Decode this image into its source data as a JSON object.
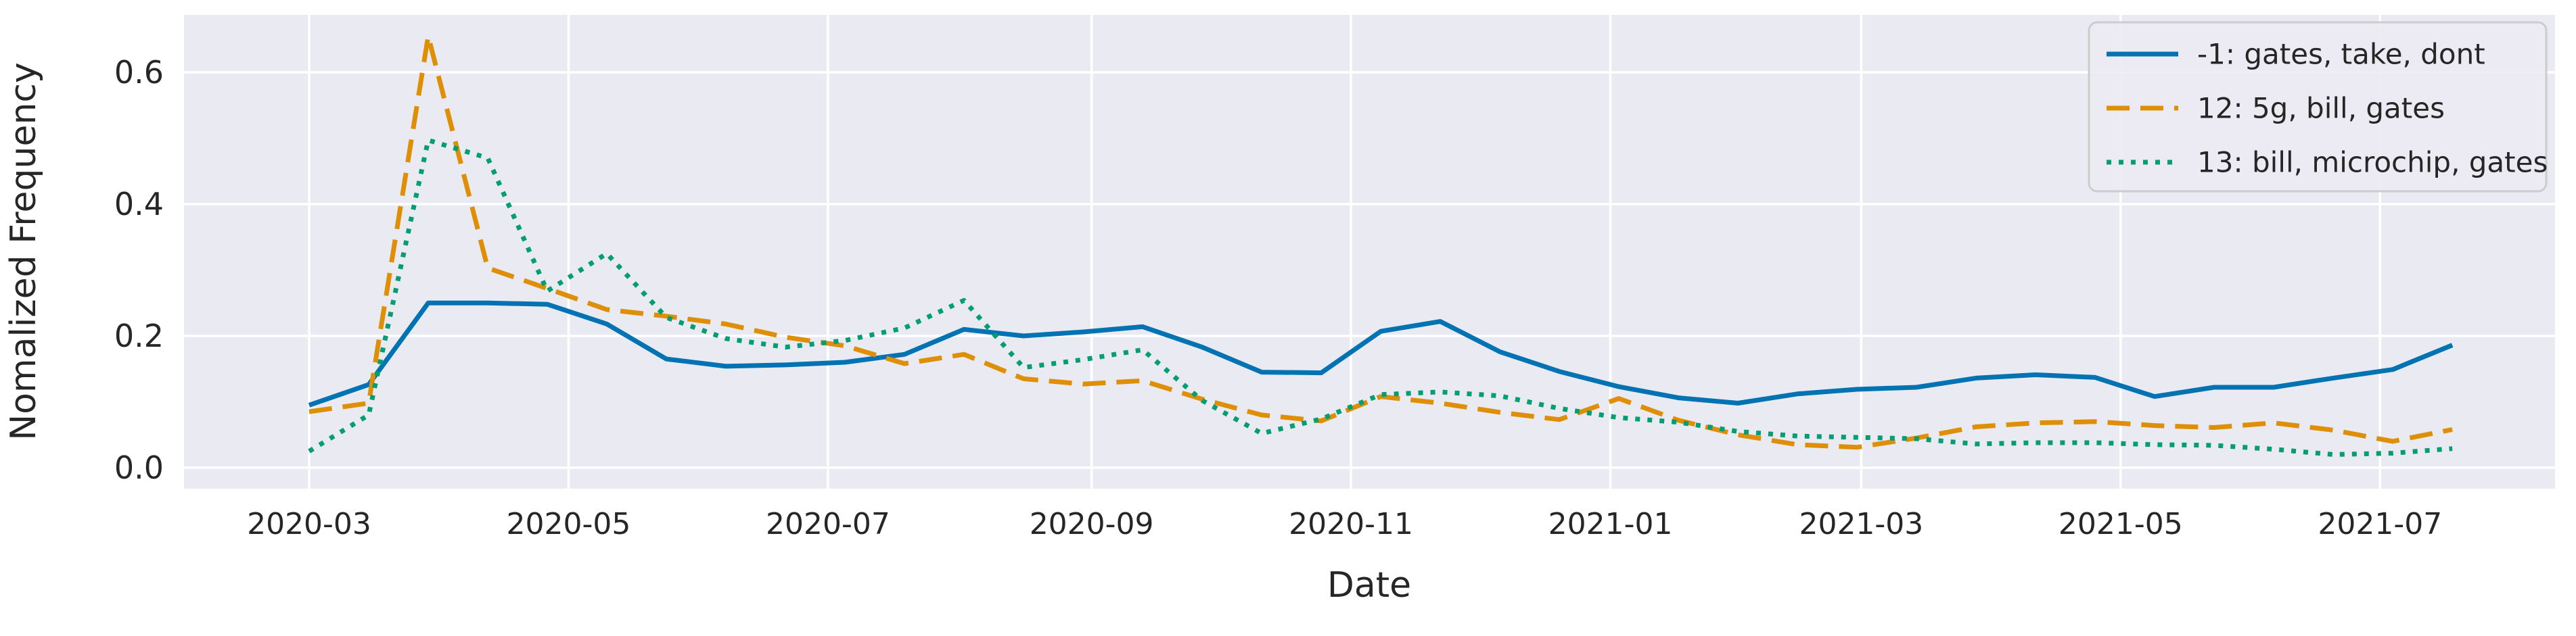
{
  "figure": {
    "background": "#ffffff",
    "plot_background": "#eaeaf2",
    "grid_color": "#ffffff",
    "text_color": "#262626",
    "legend_border_color": "#cccccc",
    "legend_background": "#ecebf4"
  },
  "chart_data": {
    "type": "line",
    "title": "",
    "xlabel": "Date",
    "ylabel": "Nomalized Frequency",
    "grid": true,
    "legend_position": "upper right",
    "ylim": [
      -0.032,
      0.687
    ],
    "yticks": [
      {
        "value": 0.0,
        "label": "0.0"
      },
      {
        "value": 0.2,
        "label": "0.2"
      },
      {
        "value": 0.4,
        "label": "0.4"
      },
      {
        "value": 0.6,
        "label": "0.6"
      }
    ],
    "xticks": [
      {
        "date": "2020-03-01",
        "label": "2020-03"
      },
      {
        "date": "2020-05-01",
        "label": "2020-05"
      },
      {
        "date": "2020-07-01",
        "label": "2020-07"
      },
      {
        "date": "2020-09-01",
        "label": "2020-09"
      },
      {
        "date": "2020-11-01",
        "label": "2020-11"
      },
      {
        "date": "2021-01-01",
        "label": "2021-01"
      },
      {
        "date": "2021-03-01",
        "label": "2021-03"
      },
      {
        "date": "2021-05-01",
        "label": "2021-05"
      },
      {
        "date": "2021-07-01",
        "label": "2021-07"
      }
    ],
    "x": [
      "2020-03-01",
      "2020-03-15",
      "2020-03-29",
      "2020-04-12",
      "2020-04-26",
      "2020-05-10",
      "2020-05-24",
      "2020-06-07",
      "2020-06-21",
      "2020-07-05",
      "2020-07-19",
      "2020-08-02",
      "2020-08-16",
      "2020-08-30",
      "2020-09-13",
      "2020-09-27",
      "2020-10-11",
      "2020-10-25",
      "2020-11-08",
      "2020-11-22",
      "2020-12-06",
      "2020-12-20",
      "2021-01-03",
      "2021-01-17",
      "2021-01-31",
      "2021-02-14",
      "2021-02-28",
      "2021-03-14",
      "2021-03-28",
      "2021-04-11",
      "2021-04-25",
      "2021-05-09",
      "2021-05-23",
      "2021-06-06",
      "2021-06-20",
      "2021-07-04",
      "2021-07-18"
    ],
    "series": [
      {
        "name": "-1: gates, take, dont",
        "color": "#0173b2",
        "style": "solid",
        "values": [
          0.095,
          0.126,
          0.25,
          0.25,
          0.248,
          0.218,
          0.165,
          0.154,
          0.156,
          0.16,
          0.172,
          0.21,
          0.2,
          0.206,
          0.214,
          0.183,
          0.145,
          0.144,
          0.207,
          0.222,
          0.176,
          0.146,
          0.123,
          0.106,
          0.098,
          0.112,
          0.119,
          0.122,
          0.136,
          0.141,
          0.137,
          0.108,
          0.122,
          0.122,
          0.136,
          0.149,
          0.186
        ]
      },
      {
        "name": "12: 5g, bill, gates",
        "color": "#de8f05",
        "style": "dashed",
        "values": [
          0.085,
          0.098,
          0.655,
          0.303,
          0.272,
          0.24,
          0.23,
          0.218,
          0.198,
          0.185,
          0.158,
          0.172,
          0.135,
          0.127,
          0.132,
          0.104,
          0.08,
          0.071,
          0.108,
          0.098,
          0.084,
          0.073,
          0.105,
          0.072,
          0.05,
          0.035,
          0.031,
          0.045,
          0.062,
          0.068,
          0.07,
          0.064,
          0.061,
          0.068,
          0.057,
          0.04,
          0.058
        ]
      },
      {
        "name": "13: bill, microchip, gates",
        "color": "#029e73",
        "style": "dotted",
        "values": [
          0.025,
          0.08,
          0.497,
          0.47,
          0.268,
          0.325,
          0.228,
          0.196,
          0.183,
          0.193,
          0.212,
          0.254,
          0.152,
          0.164,
          0.179,
          0.102,
          0.052,
          0.074,
          0.111,
          0.115,
          0.109,
          0.09,
          0.076,
          0.069,
          0.055,
          0.048,
          0.046,
          0.044,
          0.036,
          0.038,
          0.038,
          0.035,
          0.034,
          0.028,
          0.02,
          0.022,
          0.029
        ]
      }
    ]
  }
}
